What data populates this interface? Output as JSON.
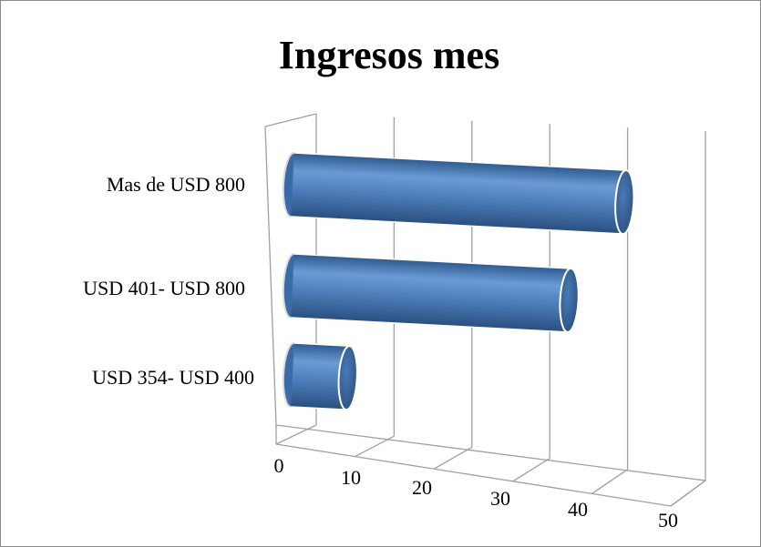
{
  "chart_data": {
    "type": "bar",
    "orientation": "horizontal",
    "style": "3d-cylinder",
    "title": "Ingresos  mes",
    "categories": [
      "Mas de USD 800",
      "USD 401- USD 800",
      "USD 354- USD 400"
    ],
    "values": [
      48,
      40,
      8
    ],
    "xlim": [
      0,
      50
    ],
    "x_ticks": [
      "0",
      "10",
      "20",
      "30",
      "40",
      "50"
    ],
    "grid": true,
    "legend": "none",
    "bar_color": "#4f81bd"
  }
}
